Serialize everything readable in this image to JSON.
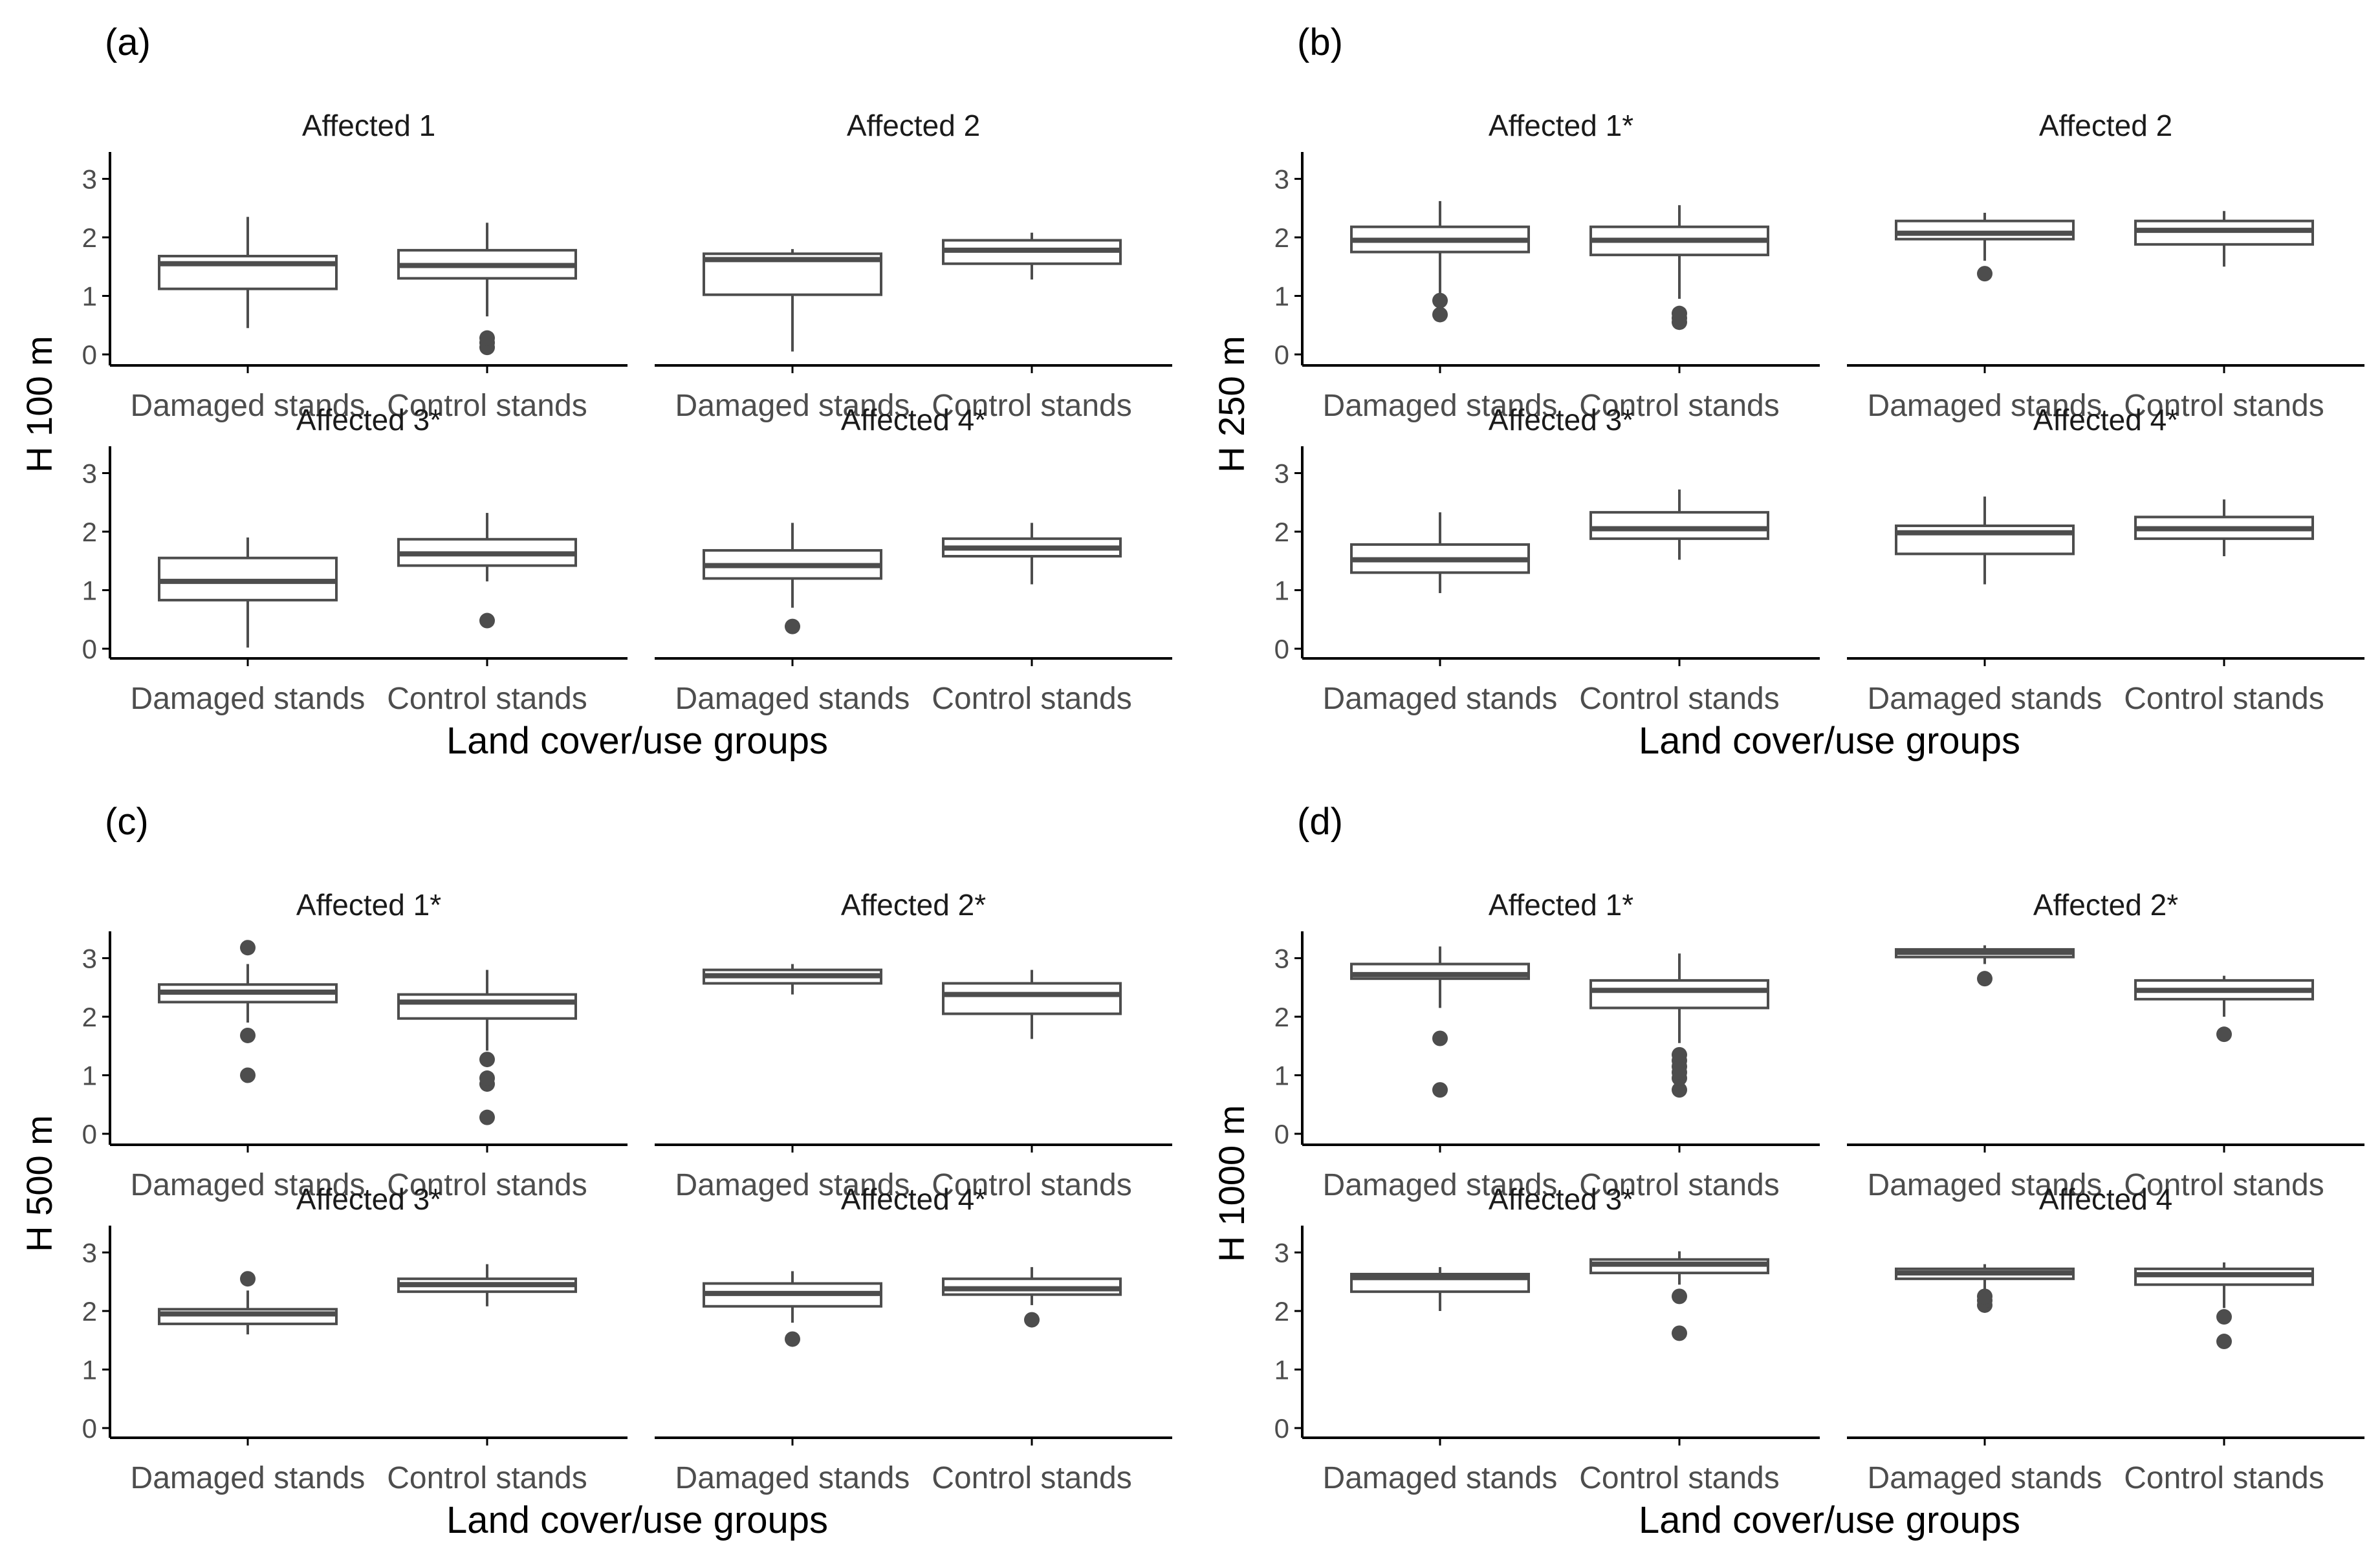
{
  "chart_data": [
    {
      "type": "boxplot",
      "panel_label": "(a)",
      "ylabel": "H 100 m",
      "xlabel": "Land cover/use groups",
      "categories": [
        "Damaged stands",
        "Control stands"
      ],
      "ylim": [
        0,
        3.4
      ],
      "yticks": [
        "0",
        "1",
        "2",
        "3"
      ],
      "facets": [
        {
          "title": "Affected 1",
          "boxes": [
            {
              "whisker_low": 0.45,
              "q1": 1.12,
              "median": 1.55,
              "q3": 1.68,
              "whisker_high": 2.35,
              "outliers": []
            },
            {
              "whisker_low": 0.65,
              "q1": 1.3,
              "median": 1.52,
              "q3": 1.78,
              "whisker_high": 2.25,
              "outliers": [
                0.12,
                0.2,
                0.28
              ]
            }
          ]
        },
        {
          "title": "Affected 2",
          "boxes": [
            {
              "whisker_low": 0.05,
              "q1": 1.02,
              "median": 1.62,
              "q3": 1.72,
              "whisker_high": 1.8,
              "outliers": []
            },
            {
              "whisker_low": 1.28,
              "q1": 1.55,
              "median": 1.78,
              "q3": 1.95,
              "whisker_high": 2.08,
              "outliers": []
            }
          ]
        },
        {
          "title": "Affected 3*",
          "boxes": [
            {
              "whisker_low": 0.02,
              "q1": 0.83,
              "median": 1.15,
              "q3": 1.55,
              "whisker_high": 1.9,
              "outliers": []
            },
            {
              "whisker_low": 1.15,
              "q1": 1.42,
              "median": 1.62,
              "q3": 1.87,
              "whisker_high": 2.32,
              "outliers": [
                0.48
              ]
            }
          ]
        },
        {
          "title": "Affected 4*",
          "boxes": [
            {
              "whisker_low": 0.7,
              "q1": 1.2,
              "median": 1.42,
              "q3": 1.68,
              "whisker_high": 2.15,
              "outliers": [
                0.38
              ]
            },
            {
              "whisker_low": 1.1,
              "q1": 1.58,
              "median": 1.72,
              "q3": 1.88,
              "whisker_high": 2.15,
              "outliers": []
            }
          ]
        }
      ]
    },
    {
      "type": "boxplot",
      "panel_label": "(b)",
      "ylabel": "H 250 m",
      "xlabel": "Land cover/use groups",
      "categories": [
        "Damaged stands",
        "Control stands"
      ],
      "ylim": [
        0,
        3.4
      ],
      "yticks": [
        "0",
        "1",
        "2",
        "3"
      ],
      "facets": [
        {
          "title": "Affected 1*",
          "boxes": [
            {
              "whisker_low": 1.05,
              "q1": 1.75,
              "median": 1.95,
              "q3": 2.18,
              "whisker_high": 2.62,
              "outliers": [
                0.68,
                0.92
              ]
            },
            {
              "whisker_low": 0.95,
              "q1": 1.7,
              "median": 1.95,
              "q3": 2.18,
              "whisker_high": 2.55,
              "outliers": [
                0.55,
                0.62,
                0.7
              ]
            }
          ]
        },
        {
          "title": "Affected 2",
          "boxes": [
            {
              "whisker_low": 1.6,
              "q1": 1.97,
              "median": 2.07,
              "q3": 2.28,
              "whisker_high": 2.42,
              "outliers": [
                1.38
              ]
            },
            {
              "whisker_low": 1.5,
              "q1": 1.88,
              "median": 2.12,
              "q3": 2.28,
              "whisker_high": 2.45,
              "outliers": []
            }
          ]
        },
        {
          "title": "Affected 3*",
          "boxes": [
            {
              "whisker_low": 0.95,
              "q1": 1.3,
              "median": 1.52,
              "q3": 1.78,
              "whisker_high": 2.33,
              "outliers": []
            },
            {
              "whisker_low": 1.52,
              "q1": 1.88,
              "median": 2.05,
              "q3": 2.33,
              "whisker_high": 2.72,
              "outliers": []
            }
          ]
        },
        {
          "title": "Affected 4*",
          "boxes": [
            {
              "whisker_low": 1.1,
              "q1": 1.62,
              "median": 1.98,
              "q3": 2.1,
              "whisker_high": 2.6,
              "outliers": []
            },
            {
              "whisker_low": 1.58,
              "q1": 1.88,
              "median": 2.05,
              "q3": 2.25,
              "whisker_high": 2.55,
              "outliers": []
            }
          ]
        }
      ]
    },
    {
      "type": "boxplot",
      "panel_label": "(c)",
      "ylabel": "H 500 m",
      "xlabel": "Land cover/use groups",
      "categories": [
        "Damaged stands",
        "Control stands"
      ],
      "ylim": [
        0,
        3.4
      ],
      "yticks": [
        "0",
        "1",
        "2",
        "3"
      ],
      "facets": [
        {
          "title": "Affected 1*",
          "boxes": [
            {
              "whisker_low": 1.9,
              "q1": 2.25,
              "median": 2.42,
              "q3": 2.55,
              "whisker_high": 2.9,
              "outliers": [
                1.0,
                1.68,
                3.18
              ]
            },
            {
              "whisker_low": 1.42,
              "q1": 1.97,
              "median": 2.25,
              "q3": 2.38,
              "whisker_high": 2.8,
              "outliers": [
                0.28,
                0.85,
                0.95,
                1.27
              ]
            }
          ]
        },
        {
          "title": "Affected 2*",
          "boxes": [
            {
              "whisker_low": 2.38,
              "q1": 2.57,
              "median": 2.7,
              "q3": 2.8,
              "whisker_high": 2.9,
              "outliers": []
            },
            {
              "whisker_low": 1.62,
              "q1": 2.05,
              "median": 2.38,
              "q3": 2.57,
              "whisker_high": 2.8,
              "outliers": []
            }
          ]
        },
        {
          "title": "Affected 3*",
          "boxes": [
            {
              "whisker_low": 1.6,
              "q1": 1.78,
              "median": 1.95,
              "q3": 2.03,
              "whisker_high": 2.35,
              "outliers": [
                2.55
              ]
            },
            {
              "whisker_low": 2.08,
              "q1": 2.33,
              "median": 2.45,
              "q3": 2.55,
              "whisker_high": 2.8,
              "outliers": []
            }
          ]
        },
        {
          "title": "Affected 4*",
          "boxes": [
            {
              "whisker_low": 1.8,
              "q1": 2.08,
              "median": 2.3,
              "q3": 2.47,
              "whisker_high": 2.68,
              "outliers": [
                1.52
              ]
            },
            {
              "whisker_low": 2.1,
              "q1": 2.28,
              "median": 2.38,
              "q3": 2.55,
              "whisker_high": 2.75,
              "outliers": [
                1.85
              ]
            }
          ]
        }
      ]
    },
    {
      "type": "boxplot",
      "panel_label": "(d)",
      "ylabel": "H 1000 m",
      "xlabel": "Land cover/use groups",
      "categories": [
        "Damaged stands",
        "Control stands"
      ],
      "ylim": [
        0,
        3.4
      ],
      "yticks": [
        "0",
        "1",
        "2",
        "3"
      ],
      "facets": [
        {
          "title": "Affected 1*",
          "boxes": [
            {
              "whisker_low": 2.15,
              "q1": 2.65,
              "median": 2.72,
              "q3": 2.9,
              "whisker_high": 3.2,
              "outliers": [
                0.75,
                1.63
              ]
            },
            {
              "whisker_low": 1.55,
              "q1": 2.15,
              "median": 2.45,
              "q3": 2.62,
              "whisker_high": 3.08,
              "outliers": [
                0.75,
                0.95,
                1.05,
                1.15,
                1.25,
                1.35
              ]
            }
          ]
        },
        {
          "title": "Affected 2*",
          "boxes": [
            {
              "whisker_low": 2.9,
              "q1": 3.02,
              "median": 3.1,
              "q3": 3.15,
              "whisker_high": 3.22,
              "outliers": [
                2.65
              ]
            },
            {
              "whisker_low": 2.0,
              "q1": 2.3,
              "median": 2.45,
              "q3": 2.62,
              "whisker_high": 2.7,
              "outliers": [
                1.7
              ]
            }
          ]
        },
        {
          "title": "Affected 3*",
          "boxes": [
            {
              "whisker_low": 2.0,
              "q1": 2.33,
              "median": 2.57,
              "q3": 2.63,
              "whisker_high": 2.75,
              "outliers": []
            },
            {
              "whisker_low": 2.45,
              "q1": 2.65,
              "median": 2.8,
              "q3": 2.88,
              "whisker_high": 3.02,
              "outliers": [
                1.62,
                2.25
              ]
            }
          ]
        },
        {
          "title": "Affected 4",
          "boxes": [
            {
              "whisker_low": 2.3,
              "q1": 2.55,
              "median": 2.65,
              "q3": 2.72,
              "whisker_high": 2.8,
              "outliers": [
                2.1,
                2.18,
                2.25
              ]
            },
            {
              "whisker_low": 2.05,
              "q1": 2.45,
              "median": 2.62,
              "q3": 2.72,
              "whisker_high": 2.83,
              "outliers": [
                1.48,
                1.9
              ]
            }
          ]
        }
      ]
    }
  ],
  "colors": {
    "box_stroke": "#4d4d4d",
    "outlier": "#4d4d4d",
    "axis": "#000000",
    "tick_text": "#4d4d4d",
    "background": "#ffffff"
  }
}
